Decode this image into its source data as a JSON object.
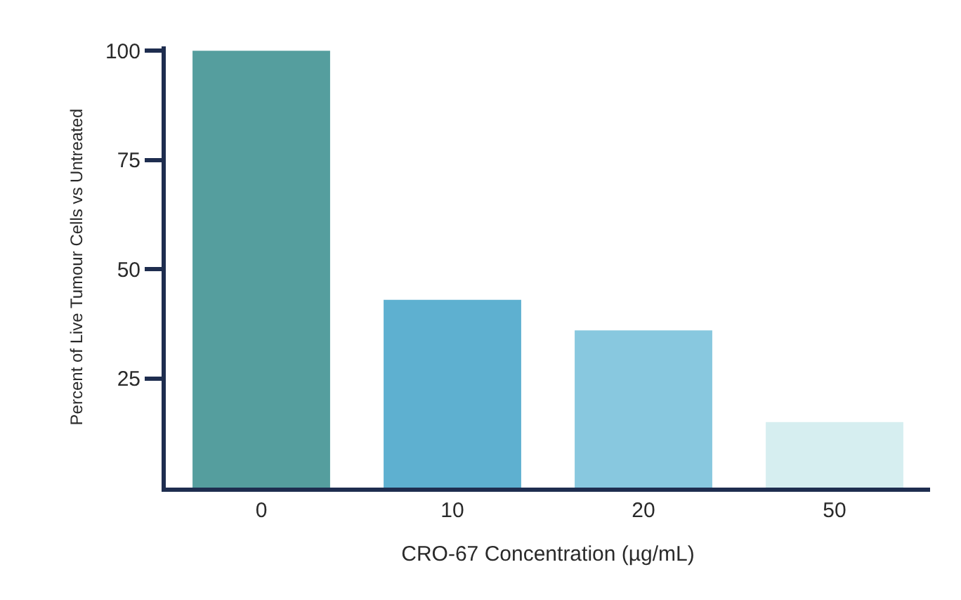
{
  "chart_data": {
    "type": "bar",
    "xlabel": "CRO-67 Concentration (µg/mL)",
    "ylabel": "Percent of Live Tumour Cells vs Untreated",
    "categories": [
      "0",
      "10",
      "20",
      "50"
    ],
    "values": [
      100,
      43,
      36,
      15
    ],
    "colors": [
      "#559e9e",
      "#5eb0d0",
      "#88c8df",
      "#d6eef0"
    ],
    "ylim": [
      0,
      101
    ],
    "yticks": [
      25,
      50,
      75,
      100
    ]
  }
}
